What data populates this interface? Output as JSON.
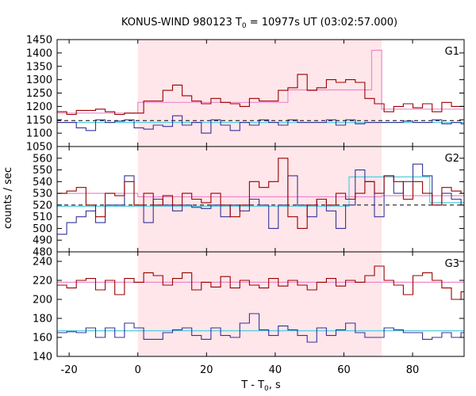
{
  "chart_data": {
    "type": "line",
    "title_prefix": "KONUS-WIND 980123 T",
    "title_sub": "0",
    "title_suffix": " = 10977s UT (03:02:57.000)",
    "xlabel_prefix": "T - T",
    "xlabel_sub": "0",
    "xlabel_suffix": ", s",
    "ylabel": "counts / sec",
    "xlim": [
      -23.5,
      95
    ],
    "x_ticks": [
      -20,
      0,
      20,
      40,
      60,
      80
    ],
    "shaded_interval": [
      0,
      71
    ],
    "colors": {
      "red": "#990000",
      "blue": "#33339a",
      "pink": "#ee88cc",
      "cyan": "#55ccdd",
      "shade": "#ffe6ea",
      "background_line": "#000000"
    },
    "panels": [
      {
        "name": "G1",
        "ylim": [
          1050,
          1450
        ],
        "y_ticks": [
          1050,
          1100,
          1150,
          1200,
          1250,
          1300,
          1350,
          1400,
          1450
        ],
        "bin_edges": [
          -23.5,
          -20.7,
          -17.9,
          -15.1,
          -12.3,
          -9.5,
          -6.7,
          -3.9,
          -1.1,
          1.7,
          4.5,
          7.3,
          10.1,
          12.9,
          15.7,
          18.5,
          21.3,
          24.1,
          26.9,
          29.7,
          32.5,
          35.3,
          38.1,
          40.9,
          43.7,
          46.5,
          49.3,
          52.1,
          54.9,
          57.7,
          60.5,
          63.3,
          66.1,
          68.9,
          71.7,
          74.5,
          77.3,
          80.1,
          82.9,
          85.7,
          88.5,
          91.3,
          94.1,
          95
        ],
        "red": [
          1180,
          1170,
          1185,
          1185,
          1190,
          1180,
          1170,
          1175,
          1175,
          1220,
          1220,
          1260,
          1280,
          1240,
          1220,
          1210,
          1230,
          1215,
          1210,
          1200,
          1230,
          1220,
          1220,
          1260,
          1270,
          1320,
          1260,
          1270,
          1300,
          1290,
          1300,
          1290,
          1230,
          1210,
          1180,
          1200,
          1210,
          1195,
          1210,
          1180,
          1215,
          1200,
          1200
        ],
        "blue": [
          1140,
          1140,
          1120,
          1110,
          1150,
          1140,
          1145,
          1150,
          1120,
          1115,
          1130,
          1125,
          1165,
          1130,
          1140,
          1100,
          1150,
          1130,
          1110,
          1140,
          1130,
          1150,
          1140,
          1130,
          1150,
          1140,
          1140,
          1140,
          1150,
          1130,
          1150,
          1135,
          1140,
          1140,
          1140,
          1140,
          1145,
          1140,
          1140,
          1150,
          1135,
          1140,
          1135
        ],
        "pink_steps": [
          {
            "x0": -23.5,
            "x1": 0,
            "y": 1175
          },
          {
            "x0": 0,
            "x1": 43.7,
            "y": 1215
          },
          {
            "x0": 43.7,
            "x1": 68.1,
            "y": 1262
          },
          {
            "x0": 68.1,
            "x1": 71,
            "y": 1410
          },
          {
            "x0": 71,
            "x1": 95,
            "y": 1190
          }
        ],
        "cyan_level": 1140,
        "background_level": 1147
      },
      {
        "name": "G2",
        "ylim": [
          480,
          570
        ],
        "y_ticks": [
          480,
          490,
          500,
          510,
          520,
          530,
          540,
          550,
          560
        ],
        "bin_edges": [
          -23.5,
          -20.7,
          -17.9,
          -15.1,
          -12.3,
          -9.5,
          -6.7,
          -3.9,
          -1.1,
          1.7,
          4.5,
          7.3,
          10.1,
          12.9,
          15.7,
          18.5,
          21.3,
          24.1,
          26.9,
          29.7,
          32.5,
          35.3,
          38.1,
          40.9,
          43.7,
          46.5,
          49.3,
          52.1,
          54.9,
          57.7,
          60.5,
          63.3,
          66.1,
          68.9,
          71.7,
          74.5,
          77.3,
          80.1,
          82.9,
          85.7,
          88.5,
          91.3,
          94.1,
          95
        ],
        "red": [
          530,
          532,
          535,
          520,
          510,
          530,
          528,
          540,
          520,
          530,
          520,
          528,
          520,
          530,
          525,
          522,
          530,
          520,
          510,
          520,
          540,
          535,
          540,
          560,
          510,
          500,
          520,
          525,
          520,
          530,
          525,
          530,
          540,
          530,
          545,
          540,
          525,
          540,
          530,
          520,
          535,
          532,
          530
        ],
        "blue": [
          495,
          505,
          510,
          515,
          505,
          520,
          520,
          545,
          520,
          505,
          525,
          520,
          515,
          520,
          518,
          517,
          520,
          510,
          520,
          515,
          525,
          520,
          500,
          520,
          545,
          520,
          510,
          525,
          515,
          500,
          520,
          550,
          540,
          510,
          545,
          530,
          540,
          555,
          545,
          520,
          530,
          525,
          520
        ],
        "pink_steps": [
          {
            "x0": -23.5,
            "x1": 0,
            "y": 530
          },
          {
            "x0": 0,
            "x1": 71,
            "y": 527
          },
          {
            "x0": 71,
            "x1": 95,
            "y": 528
          }
        ],
        "cyan_steps": [
          {
            "x0": -23.5,
            "x1": 61.5,
            "y": 519
          },
          {
            "x0": 61.5,
            "x1": 85,
            "y": 544
          },
          {
            "x0": 85,
            "x1": 95,
            "y": 522
          }
        ],
        "background_level": 520
      },
      {
        "name": "G3",
        "ylim": [
          140,
          250
        ],
        "y_ticks": [
          140,
          160,
          180,
          200,
          220,
          240
        ],
        "bin_edges": [
          -23.5,
          -20.7,
          -17.9,
          -15.1,
          -12.3,
          -9.5,
          -6.7,
          -3.9,
          -1.1,
          1.7,
          4.5,
          7.3,
          10.1,
          12.9,
          15.7,
          18.5,
          21.3,
          24.1,
          26.9,
          29.7,
          32.5,
          35.3,
          38.1,
          40.9,
          43.7,
          46.5,
          49.3,
          52.1,
          54.9,
          57.7,
          60.5,
          63.3,
          66.1,
          68.9,
          71.7,
          74.5,
          77.3,
          80.1,
          82.9,
          85.7,
          88.5,
          91.3,
          94.1,
          95
        ],
        "red": [
          215,
          212,
          220,
          222,
          210,
          220,
          205,
          222,
          218,
          228,
          225,
          215,
          222,
          228,
          210,
          218,
          213,
          224,
          212,
          220,
          215,
          212,
          222,
          214,
          220,
          215,
          210,
          218,
          222,
          214,
          220,
          218,
          225,
          235,
          220,
          215,
          205,
          225,
          228,
          220,
          212,
          200,
          208
        ],
        "blue": [
          165,
          166,
          165,
          170,
          160,
          170,
          160,
          175,
          170,
          158,
          158,
          165,
          168,
          170,
          162,
          158,
          170,
          162,
          160,
          175,
          185,
          168,
          162,
          172,
          168,
          162,
          155,
          170,
          162,
          168,
          175,
          165,
          160,
          160,
          170,
          168,
          165,
          165,
          158,
          160,
          165,
          160,
          165
        ],
        "pink_level": 218,
        "cyan_level": 167
      }
    ]
  }
}
